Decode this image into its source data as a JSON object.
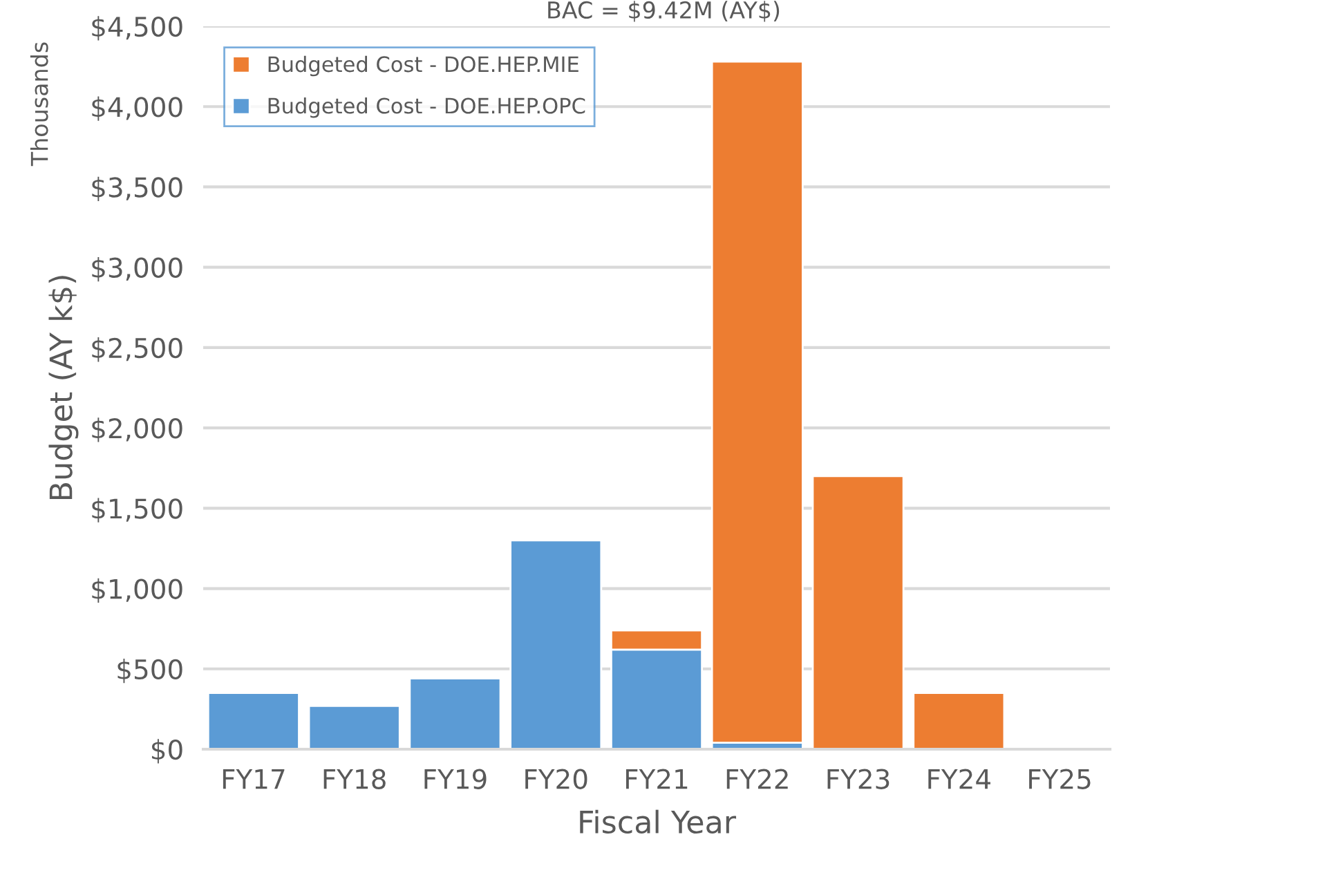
{
  "chart_data": {
    "type": "bar",
    "title": "BAC = $9.42M (AY$)",
    "xlabel": "Fiscal Year",
    "ylabel": "Budget (AY k$)",
    "annotations": [
      "Thousands"
    ],
    "categories": [
      "FY17",
      "FY18",
      "FY19",
      "FY20",
      "FY21",
      "FY22",
      "FY23",
      "FY24",
      "FY25"
    ],
    "stacked": true,
    "series": [
      {
        "name": "Budgeted Cost - DOE.HEP.OPC",
        "color": "#5b9bd5",
        "values": [
          350,
          270,
          440,
          1300,
          620,
          40,
          null,
          null,
          null
        ]
      },
      {
        "name": "Budgeted Cost - DOE.HEP.MIE",
        "color": "#ed7d31",
        "values": [
          null,
          null,
          null,
          null,
          120,
          4240,
          1700,
          350,
          null
        ]
      }
    ],
    "ylim": [
      0,
      4500
    ],
    "yticks": [
      {
        "value": 0,
        "label": "$0"
      },
      {
        "value": 500,
        "label": "$500"
      },
      {
        "value": 1000,
        "label": "$1,000"
      },
      {
        "value": 1500,
        "label": "$1,500"
      },
      {
        "value": 2000,
        "label": "$2,000"
      },
      {
        "value": 2500,
        "label": "$2,500"
      },
      {
        "value": 3000,
        "label": "$3,000"
      },
      {
        "value": 3500,
        "label": "$3,500"
      },
      {
        "value": 4000,
        "label": "$4,000"
      },
      {
        "value": 4500,
        "label": "$4,500"
      }
    ],
    "grid": "y",
    "legend": "top left"
  }
}
